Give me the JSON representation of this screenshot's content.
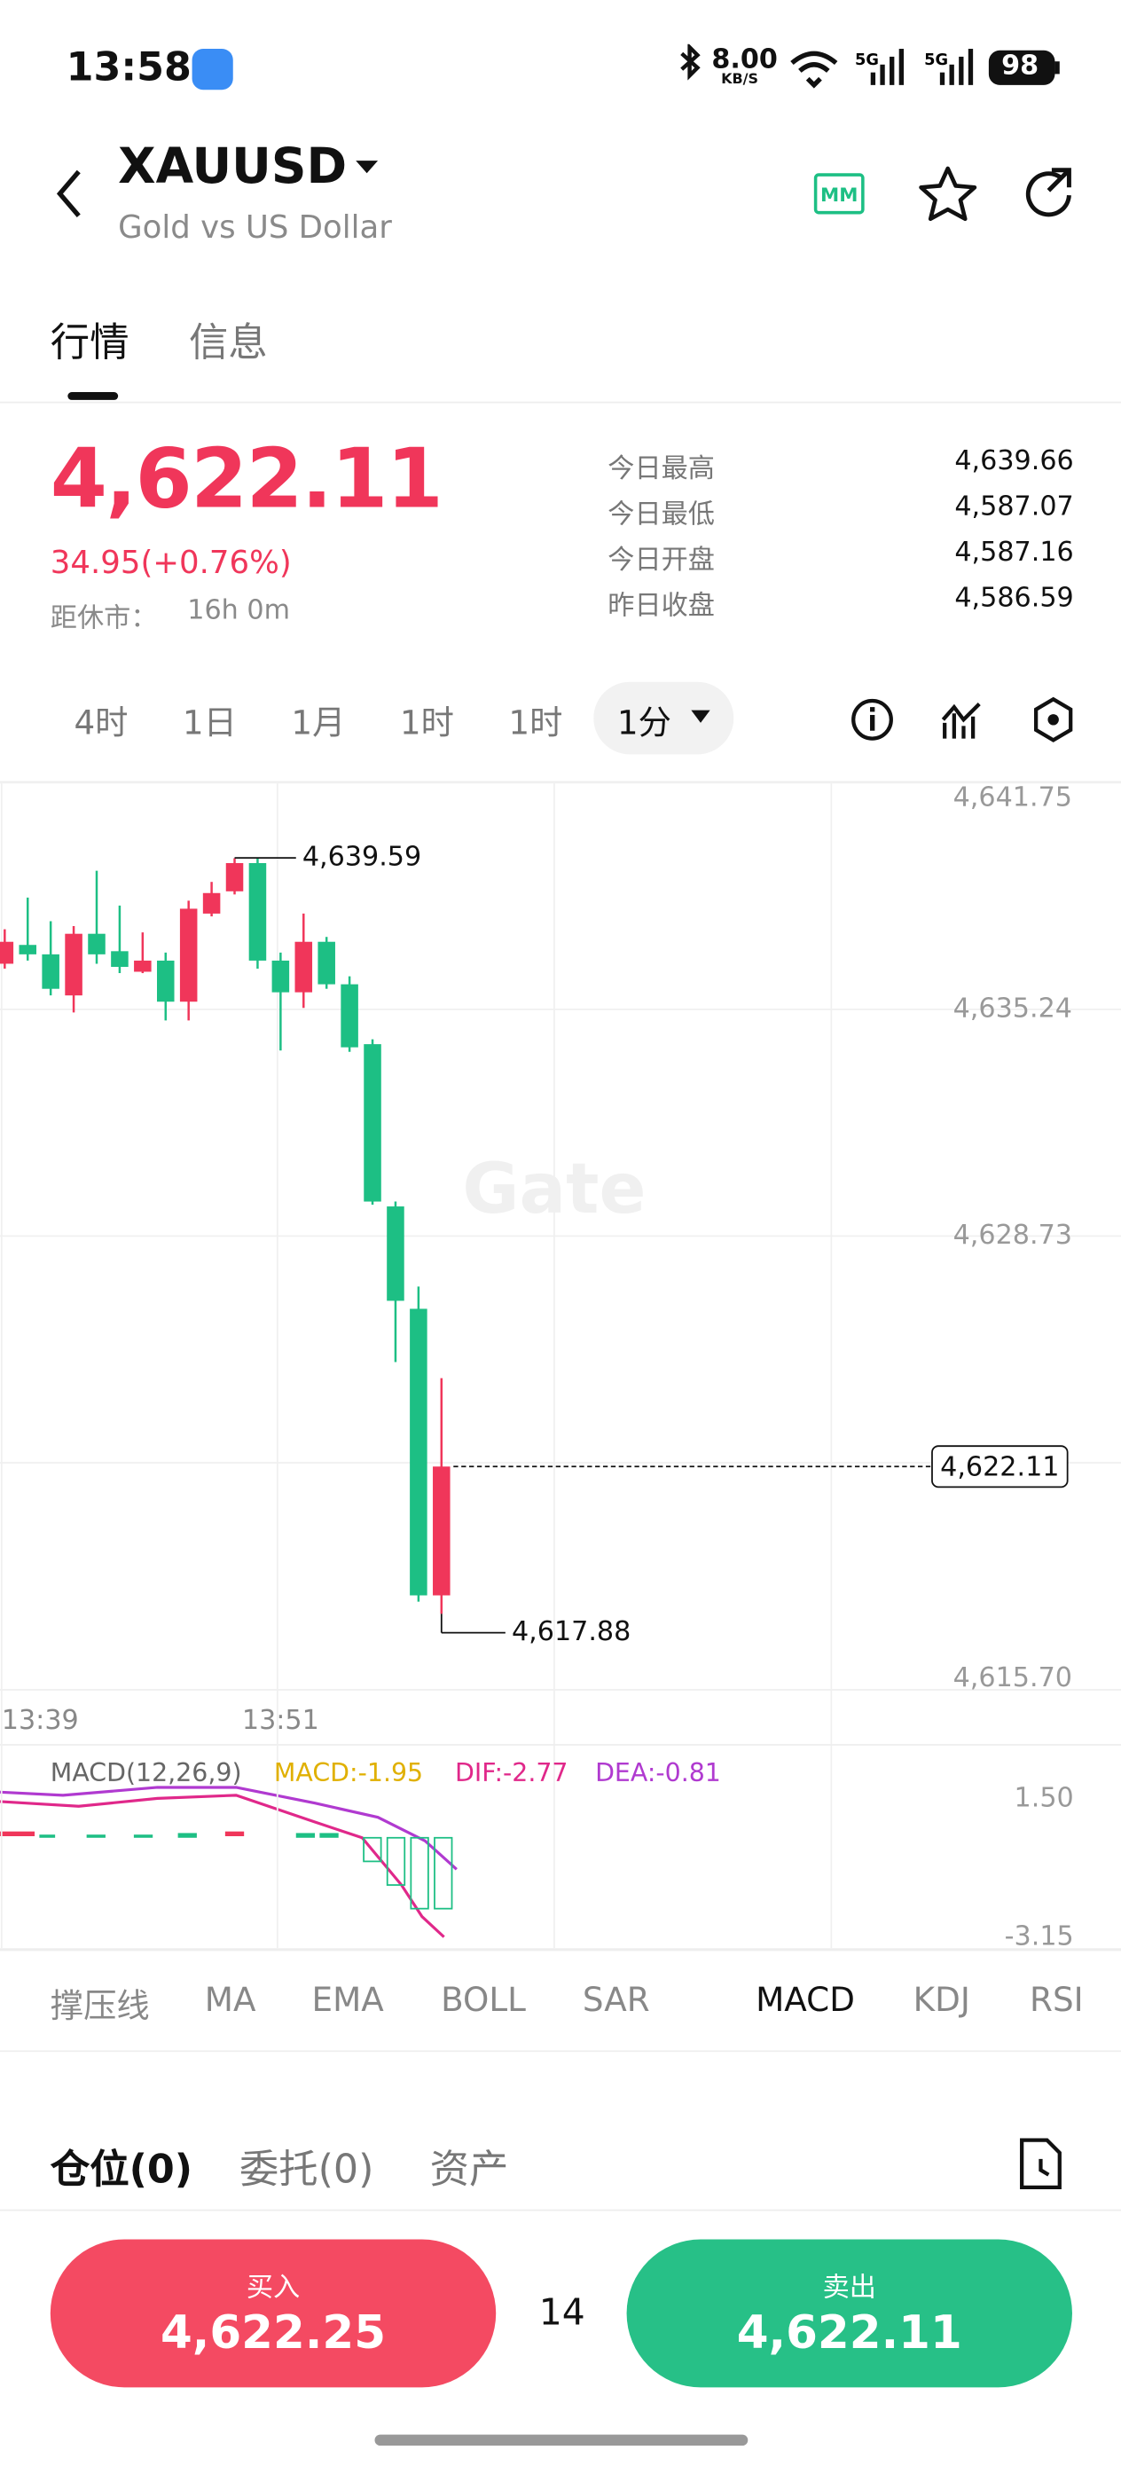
{
  "status_bar": {
    "time": "13:58",
    "speed": "8.00",
    "speed_unit": "KB/S",
    "battery": "98"
  },
  "header": {
    "symbol": "XAUUSD",
    "name": "Gold vs US Dollar",
    "badge": "MM"
  },
  "tabs": [
    "行情",
    "信息"
  ],
  "quote": {
    "price": "4,622.11",
    "change": "34.95(+0.76%)",
    "close_label": "距休市：",
    "close_time": "16h 0m",
    "stats": [
      {
        "label": "今日最高",
        "value": "4,639.66"
      },
      {
        "label": "今日最低",
        "value": "4,587.07"
      },
      {
        "label": "今日开盘",
        "value": "4,587.16"
      },
      {
        "label": "昨日收盘",
        "value": "4,586.59"
      }
    ]
  },
  "intervals": [
    "4时",
    "1日",
    "1月",
    "1时",
    "1时"
  ],
  "interval_selected": "1分",
  "chart_data": {
    "type": "candlestick",
    "categories": [
      "13:39",
      null,
      null,
      null,
      null,
      null,
      null,
      null,
      null,
      null,
      null,
      null,
      "13:51",
      null,
      null,
      null,
      null,
      null,
      null,
      null
    ],
    "open": [
      4636.55,
      4637.09,
      4636.82,
      4635.64,
      4637.41,
      4636.91,
      4636.32,
      4636.64,
      4635.46,
      4637.99,
      4638.63,
      4639.44,
      4636.64,
      4635.73,
      4637.18,
      4635.96,
      4634.24,
      4629.58,
      4626.64,
      4618.41
    ],
    "high": [
      4637.54,
      4638.45,
      4637.77,
      4637.63,
      4639.22,
      4638.22,
      4637.45,
      4636.87,
      4638.36,
      4638.9,
      4639.58,
      4639.58,
      4636.87,
      4637.99,
      4637.32,
      4636.19,
      4634.38,
      4629.72,
      4627.28,
      4624.65
    ],
    "low": [
      4636.41,
      4636.64,
      4635.64,
      4635.15,
      4636.55,
      4636.28,
      4636.28,
      4634.92,
      4634.92,
      4637.91,
      4638.54,
      4636.41,
      4634.06,
      4635.28,
      4635.83,
      4634.02,
      4629.63,
      4625.11,
      4618.23,
      4617.88
    ],
    "close": [
      4637.18,
      4636.82,
      4635.83,
      4637.41,
      4636.82,
      4636.46,
      4636.64,
      4635.46,
      4638.13,
      4638.58,
      4639.44,
      4636.64,
      4635.73,
      4637.18,
      4635.96,
      4634.15,
      4629.72,
      4626.87,
      4618.41,
      4622.11
    ],
    "up_color": "#f0365a",
    "down_color": "#1dbf84",
    "ylim": [
      4615.7,
      4641.75
    ],
    "yticks": [
      {
        "value": 4641.75,
        "label": "4,641.75"
      },
      {
        "value": 4635.24,
        "label": "4,635.24"
      },
      {
        "value": 4628.73,
        "label": "4,628.73"
      },
      {
        "value": 4622.22,
        "label": ""
      },
      {
        "value": 4615.7,
        "label": "4,615.70"
      }
    ],
    "annotations": {
      "high": {
        "value": 4639.59,
        "label": "4,639.59"
      },
      "low": {
        "value": 4617.88,
        "label": "4,617.88"
      },
      "last": {
        "value": 4622.11,
        "label": "4,622.11"
      }
    },
    "grid": true,
    "watermark": "Gate"
  },
  "macd": {
    "title": "MACD(12,26,9)",
    "macd": "MACD:-1.95",
    "dif": "DIF:-2.77",
    "dea": "DEA:-0.81",
    "top": "1.50",
    "bottom": "-3.15"
  },
  "indicators": [
    "撑压线",
    "MA",
    "EMA",
    "BOLL",
    "SAR",
    "MACD",
    "KDJ",
    "RSI"
  ],
  "positions": [
    "仓位(0)",
    "委托(0)",
    "资产"
  ],
  "trade": {
    "buy_label": "买入",
    "buy_price": "4,622.25",
    "quantity": "14",
    "sell_label": "卖出",
    "sell_price": "4,622.11"
  }
}
